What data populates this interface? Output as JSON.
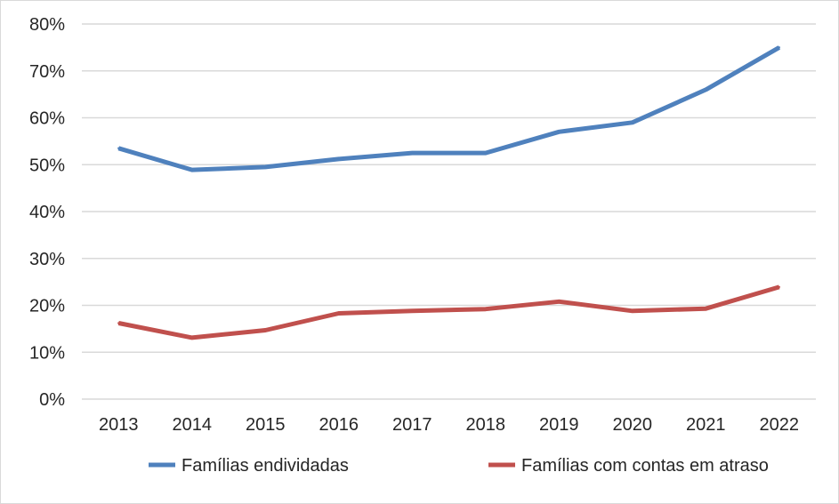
{
  "chart_data": {
    "type": "line",
    "title": "",
    "xlabel": "",
    "ylabel": "",
    "categories": [
      "2013",
      "2014",
      "2015",
      "2016",
      "2017",
      "2018",
      "2019",
      "2020",
      "2021",
      "2022"
    ],
    "ylim": [
      0,
      80
    ],
    "yticks": [
      0,
      10,
      20,
      30,
      40,
      50,
      60,
      70,
      80
    ],
    "ytick_labels": [
      "0%",
      "10%",
      "20%",
      "30%",
      "40%",
      "50%",
      "60%",
      "70%",
      "80%"
    ],
    "grid": true,
    "legend_position": "bottom",
    "series": [
      {
        "name": "Famílias endividadas",
        "color": "#4f81bd",
        "values": [
          53.5,
          48.9,
          49.5,
          51.2,
          52.5,
          52.5,
          57.0,
          59.0,
          66.0,
          75.0
        ]
      },
      {
        "name": "Famílias com contas em atraso",
        "color": "#c0504d",
        "values": [
          16.2,
          13.1,
          14.7,
          18.3,
          18.8,
          19.2,
          20.8,
          18.8,
          19.3,
          23.9
        ]
      }
    ]
  }
}
